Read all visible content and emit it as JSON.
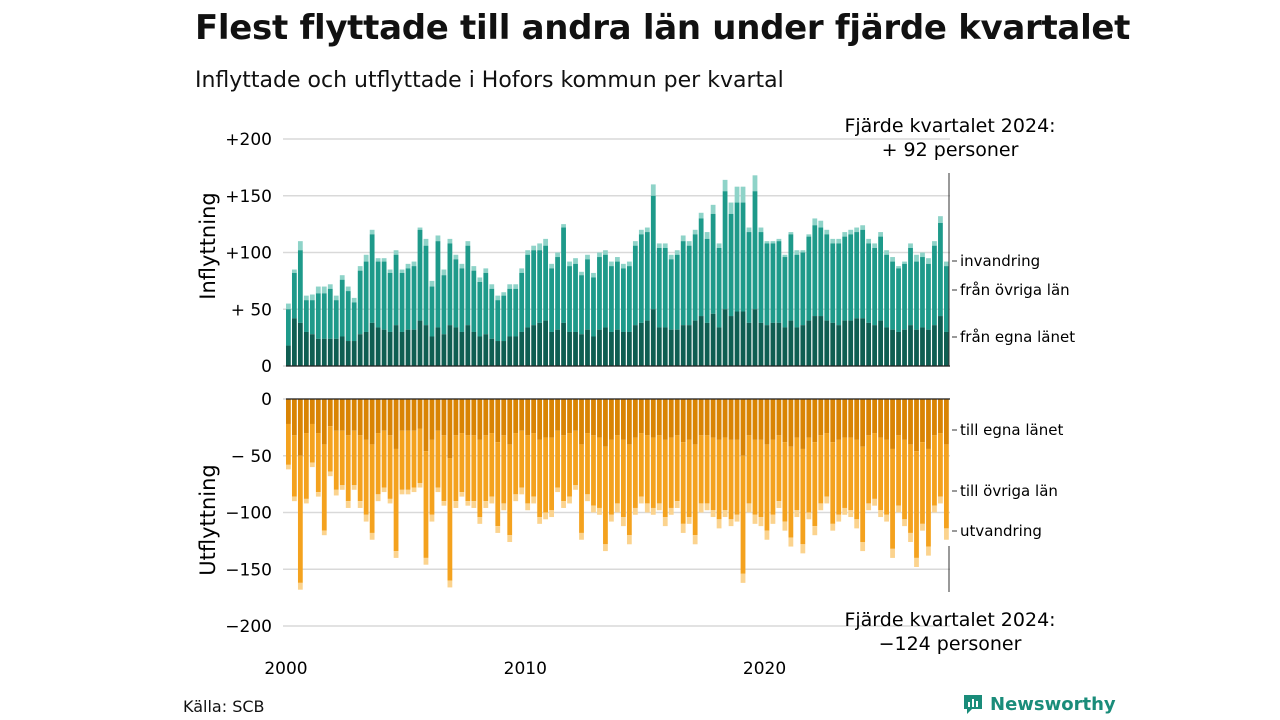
{
  "title": "Flest flyttade till andra län under fjärde kvartalet",
  "subtitle": "Inflyttade och utflyttade i Hofors kommun per kvartal",
  "source": "Källa: SCB",
  "brand": "Newsworthy",
  "colors": {
    "in_own": "#0f5e52",
    "in_other": "#1e9a8a",
    "in_immig": "#8ed3c8",
    "out_own": "#d98404",
    "out_other": "#f4a21e",
    "out_emig": "#fbd38e",
    "grid": "#d9d9d9",
    "brand": "#1a8c7a"
  },
  "chart_data": {
    "type": "bar",
    "x_ticks": [
      "2000",
      "2010",
      "2020"
    ],
    "x_range": [
      "2000 K1",
      "2024 K4"
    ],
    "panels": [
      {
        "axis_label": "Inflyttning",
        "ylim": [
          0,
          200
        ],
        "y_ticks": [
          "0",
          "+ 50",
          "+100",
          "+150",
          "+200"
        ],
        "series": [
          {
            "name": "från egna länet",
            "stack": 1
          },
          {
            "name": "från övriga län",
            "stack": 2
          },
          {
            "name": "invandring",
            "stack": 3
          }
        ],
        "annotation": "Fjärde kvartalet 2024:\n+ 92 personer",
        "last_total": 92
      },
      {
        "axis_label": "Utflyttning",
        "ylim": [
          -200,
          0
        ],
        "y_ticks": [
          "0",
          "− 50",
          "−100",
          "−150",
          "−200"
        ],
        "series": [
          {
            "name": "till egna länet",
            "stack": 1
          },
          {
            "name": "till övriga län",
            "stack": 2
          },
          {
            "name": "utvandring",
            "stack": 3
          }
        ],
        "annotation": "Fjärde kvartalet 2024:\n−124 personer",
        "last_total": -124
      }
    ],
    "inflow_totals": [
      55,
      85,
      110,
      62,
      63,
      70,
      70,
      72,
      62,
      80,
      70,
      60,
      88,
      98,
      120,
      95,
      95,
      85,
      102,
      85,
      90,
      92,
      122,
      112,
      75,
      115,
      85,
      112,
      98,
      90,
      110,
      88,
      78,
      86,
      72,
      62,
      65,
      72,
      72,
      86,
      102,
      106,
      108,
      112,
      90,
      100,
      125,
      92,
      95,
      83,
      98,
      82,
      100,
      102,
      92,
      96,
      90,
      92,
      110,
      120,
      122,
      160,
      108,
      108,
      98,
      102,
      115,
      110,
      120,
      135,
      118,
      142,
      108,
      164,
      144,
      158,
      158,
      122,
      168,
      122,
      110,
      110,
      112,
      98,
      118,
      102,
      102,
      116,
      130,
      128,
      120,
      112,
      112,
      118,
      120,
      122,
      124,
      112,
      108,
      118,
      102,
      96,
      88,
      92,
      108,
      98,
      100,
      95,
      110,
      132,
      92
    ],
    "inflow_own": [
      18,
      42,
      38,
      30,
      28,
      24,
      24,
      24,
      24,
      26,
      22,
      22,
      28,
      30,
      38,
      34,
      32,
      30,
      36,
      30,
      32,
      32,
      40,
      36,
      26,
      34,
      28,
      36,
      34,
      30,
      36,
      30,
      26,
      28,
      24,
      22,
      22,
      26,
      26,
      30,
      34,
      36,
      38,
      40,
      30,
      32,
      38,
      30,
      30,
      28,
      32,
      26,
      32,
      34,
      30,
      32,
      30,
      30,
      36,
      38,
      40,
      50,
      34,
      34,
      32,
      32,
      36,
      36,
      40,
      44,
      38,
      46,
      34,
      50,
      44,
      48,
      48,
      38,
      50,
      38,
      36,
      38,
      38,
      34,
      40,
      34,
      36,
      40,
      44,
      44,
      40,
      38,
      36,
      40,
      40,
      42,
      42,
      38,
      36,
      40,
      34,
      32,
      30,
      32,
      36,
      32,
      34,
      32,
      36,
      44,
      30
    ],
    "inflow_other": [
      32,
      40,
      64,
      28,
      30,
      40,
      40,
      44,
      34,
      50,
      44,
      34,
      56,
      62,
      78,
      58,
      60,
      52,
      62,
      52,
      54,
      56,
      80,
      70,
      44,
      76,
      52,
      72,
      60,
      56,
      70,
      54,
      48,
      54,
      44,
      36,
      40,
      42,
      42,
      52,
      64,
      66,
      64,
      66,
      56,
      64,
      84,
      58,
      60,
      52,
      62,
      52,
      64,
      64,
      58,
      60,
      56,
      58,
      70,
      78,
      78,
      100,
      70,
      70,
      62,
      66,
      74,
      70,
      76,
      86,
      74,
      88,
      70,
      104,
      90,
      96,
      96,
      80,
      104,
      80,
      72,
      70,
      72,
      62,
      76,
      64,
      64,
      74,
      80,
      78,
      76,
      70,
      72,
      74,
      76,
      76,
      78,
      70,
      68,
      74,
      64,
      60,
      56,
      58,
      68,
      60,
      62,
      58,
      70,
      82,
      58
    ],
    "outflow_totals": [
      -62,
      -90,
      -168,
      -92,
      -60,
      -86,
      -120,
      -68,
      -85,
      -80,
      -96,
      -80,
      -96,
      -108,
      -124,
      -90,
      -82,
      -92,
      -140,
      -84,
      -84,
      -82,
      -78,
      -146,
      -108,
      -82,
      -94,
      -166,
      -96,
      -86,
      -94,
      -96,
      -110,
      -96,
      -92,
      -118,
      -98,
      -126,
      -90,
      -84,
      -98,
      -92,
      -110,
      -106,
      -104,
      -82,
      -96,
      -92,
      -80,
      -124,
      -90,
      -100,
      -102,
      -134,
      -108,
      -100,
      -112,
      -128,
      -102,
      -92,
      -100,
      -102,
      -98,
      -112,
      -102,
      -96,
      -118,
      -110,
      -128,
      -100,
      -98,
      -104,
      -114,
      -104,
      -112,
      -108,
      -162,
      -100,
      -110,
      -112,
      -124,
      -110,
      -96,
      -116,
      -130,
      -104,
      -136,
      -106,
      -120,
      -98,
      -92,
      -116,
      -108,
      -102,
      -104,
      -114,
      -134,
      -98,
      -94,
      -104,
      -108,
      -140,
      -100,
      -112,
      -126,
      -148,
      -116,
      -138,
      -100,
      -92,
      -124
    ],
    "outflow_own": [
      -22,
      -32,
      -50,
      -30,
      -22,
      -30,
      -40,
      -24,
      -28,
      -28,
      -32,
      -28,
      -32,
      -36,
      -40,
      -30,
      -28,
      -32,
      -44,
      -28,
      -28,
      -28,
      -26,
      -46,
      -36,
      -28,
      -32,
      -52,
      -32,
      -30,
      -32,
      -32,
      -36,
      -32,
      -30,
      -38,
      -32,
      -40,
      -30,
      -28,
      -32,
      -30,
      -36,
      -34,
      -34,
      -28,
      -32,
      -30,
      -28,
      -40,
      -30,
      -32,
      -34,
      -42,
      -36,
      -32,
      -36,
      -40,
      -34,
      -30,
      -32,
      -34,
      -32,
      -36,
      -34,
      -32,
      -38,
      -36,
      -40,
      -32,
      -32,
      -34,
      -36,
      -34,
      -36,
      -36,
      -50,
      -32,
      -36,
      -36,
      -40,
      -36,
      -32,
      -38,
      -42,
      -34,
      -44,
      -34,
      -38,
      -32,
      -30,
      -38,
      -36,
      -34,
      -34,
      -36,
      -42,
      -32,
      -30,
      -34,
      -36,
      -44,
      -32,
      -36,
      -40,
      -46,
      -38,
      -44,
      -32,
      -30,
      -40
    ],
    "outflow_other": [
      -36,
      -54,
      -112,
      -58,
      -34,
      -52,
      -76,
      -40,
      -52,
      -48,
      -58,
      -48,
      -58,
      -66,
      -78,
      -54,
      -50,
      -56,
      -90,
      -52,
      -52,
      -50,
      -48,
      -94,
      -66,
      -50,
      -58,
      -108,
      -58,
      -52,
      -58,
      -58,
      -68,
      -58,
      -56,
      -74,
      -60,
      -80,
      -54,
      -50,
      -60,
      -56,
      -68,
      -66,
      -64,
      -50,
      -58,
      -56,
      -48,
      -78,
      -54,
      -62,
      -62,
      -86,
      -66,
      -60,
      -68,
      -80,
      -62,
      -56,
      -60,
      -62,
      -60,
      -68,
      -62,
      -58,
      -72,
      -68,
      -80,
      -60,
      -60,
      -64,
      -70,
      -64,
      -70,
      -66,
      -104,
      -60,
      -66,
      -68,
      -76,
      -66,
      -58,
      -70,
      -80,
      -64,
      -84,
      -66,
      -74,
      -60,
      -56,
      -72,
      -66,
      -62,
      -64,
      -70,
      -84,
      -60,
      -58,
      -64,
      -66,
      -88,
      -62,
      -70,
      -78,
      -94,
      -72,
      -86,
      -62,
      -56,
      -74
    ]
  }
}
